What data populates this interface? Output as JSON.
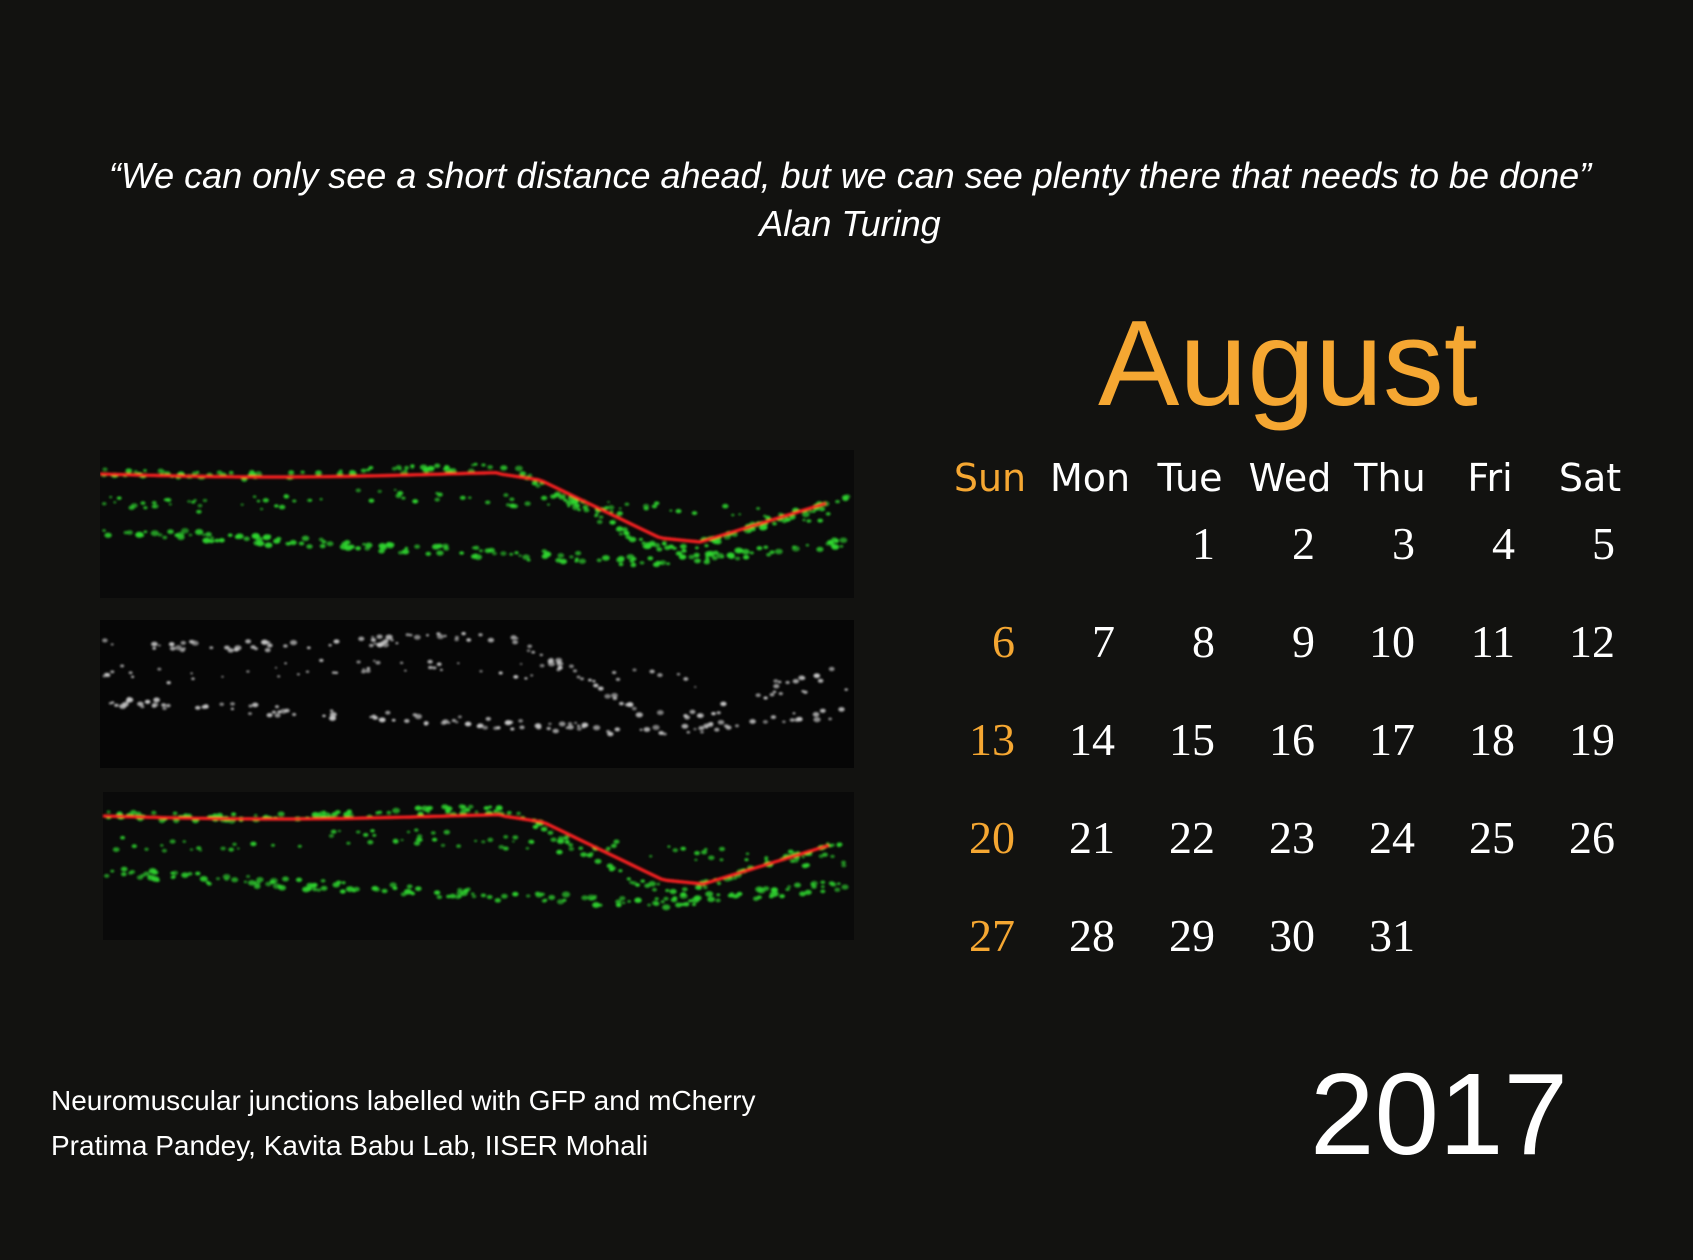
{
  "quote": {
    "text": "“We can only see a short distance ahead, but we can see plenty there that needs to be done”",
    "author": "Alan Turing"
  },
  "calendar": {
    "month": "August",
    "year": "2017",
    "weekdays": [
      "Sun",
      "Mon",
      "Tue",
      "Wed",
      "Thu",
      "Fri",
      "Sat"
    ],
    "weeks": [
      [
        "",
        "",
        "1",
        "2",
        "3",
        "4",
        "5"
      ],
      [
        "6",
        "7",
        "8",
        "9",
        "10",
        "11",
        "12"
      ],
      [
        "13",
        "14",
        "15",
        "16",
        "17",
        "18",
        "19"
      ],
      [
        "20",
        "21",
        "22",
        "23",
        "24",
        "25",
        "26"
      ],
      [
        "27",
        "28",
        "29",
        "30",
        "31",
        "",
        ""
      ]
    ]
  },
  "image_caption": {
    "line1": "Neuromuscular junctions labelled with GFP and mCherry",
    "line2": "Pratima Pandey, Kavita Babu Lab, IISER Mohali"
  },
  "colors": {
    "background": "#121210",
    "accent": "#f5a732",
    "text": "#ffffff",
    "gfp_green": "#2fd42f",
    "mcherry_red": "#ff2222",
    "gray_channel": "#c8c8c8"
  }
}
